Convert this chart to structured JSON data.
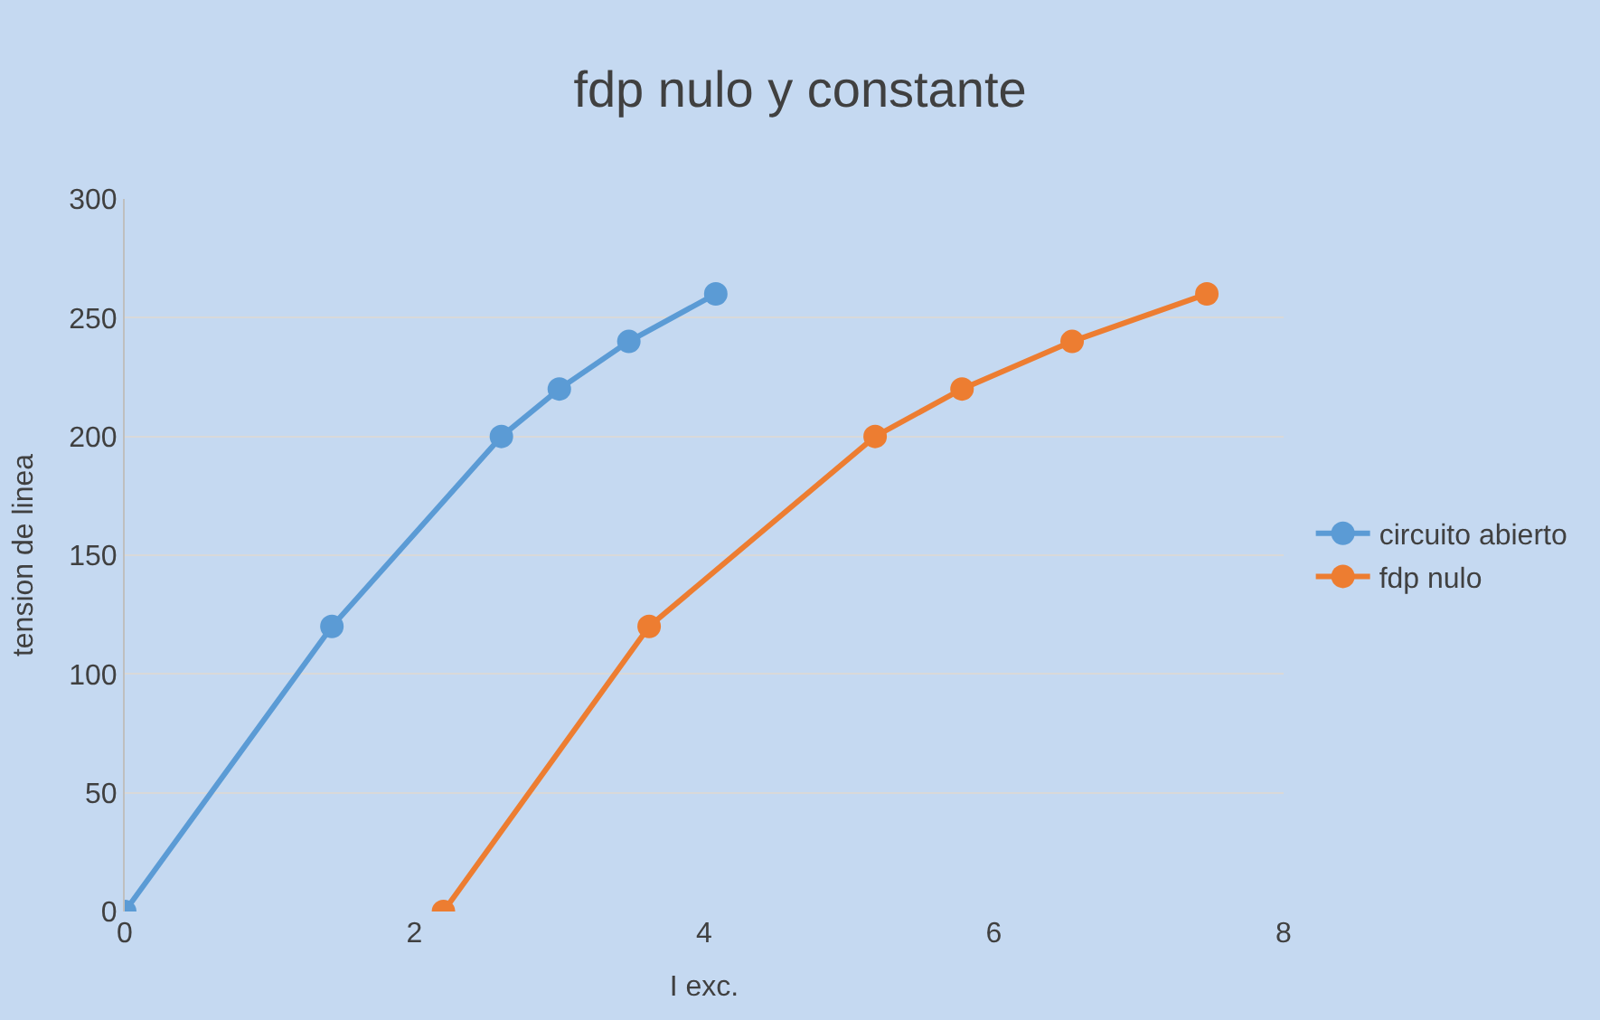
{
  "chart_data": {
    "type": "line",
    "title": "fdp nulo y constante",
    "xlabel": "I exc.",
    "ylabel": "tension de linea",
    "xlim": [
      0,
      8
    ],
    "xticks": [
      0,
      2,
      4,
      6,
      8
    ],
    "ylim": [
      0,
      300
    ],
    "yticks": [
      0,
      50,
      100,
      150,
      200,
      250,
      300
    ],
    "grid": "y",
    "legend": "right",
    "marker": "circle",
    "line_style": "solid",
    "series": [
      {
        "name": "circuito abierto",
        "color": "#5b9bd5",
        "x": [
          0,
          1.43,
          2.6,
          3.0,
          3.48,
          4.08
        ],
        "values": [
          0,
          120,
          200,
          220,
          240,
          260
        ]
      },
      {
        "name": "fdp nulo",
        "color": "#ed7d31",
        "x": [
          2.2,
          3.62,
          5.18,
          5.78,
          6.54,
          7.47
        ],
        "values": [
          0,
          120,
          200,
          220,
          240,
          260
        ]
      }
    ]
  }
}
